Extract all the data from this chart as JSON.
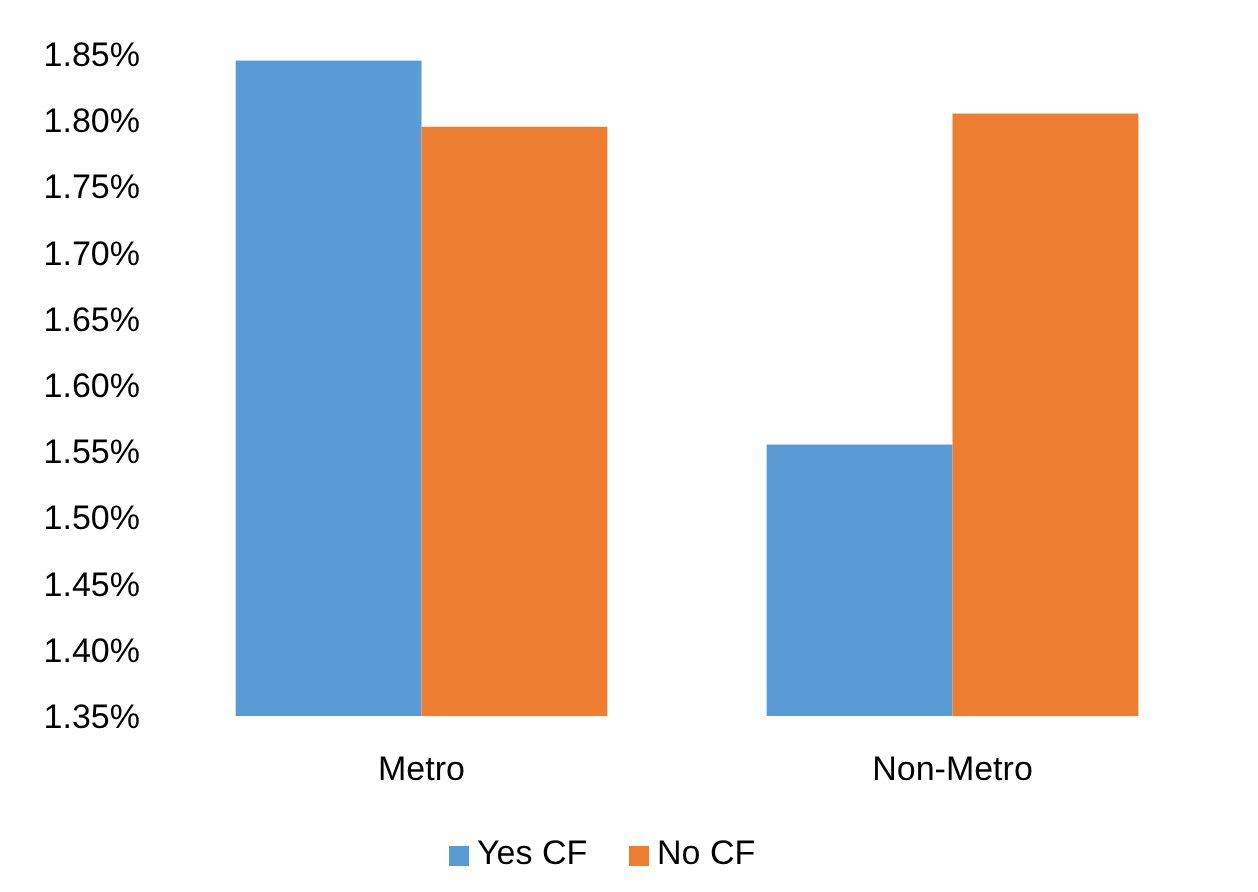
{
  "chart_data": {
    "type": "bar",
    "categories": [
      "Metro",
      "Non-Metro"
    ],
    "series": [
      {
        "name": "Yes CF",
        "color": "#5b9bd5",
        "values": [
          1.845,
          1.555
        ]
      },
      {
        "name": "No CF",
        "color": "#ed7d31",
        "values": [
          1.795,
          1.805
        ]
      }
    ],
    "ylim": [
      1.35,
      1.85
    ],
    "yticks": [
      {
        "value": 1.35,
        "label": "1.35%"
      },
      {
        "value": 1.4,
        "label": "1.40%"
      },
      {
        "value": 1.45,
        "label": "1.45%"
      },
      {
        "value": 1.5,
        "label": "1.50%"
      },
      {
        "value": 1.55,
        "label": "1.55%"
      },
      {
        "value": 1.6,
        "label": "1.60%"
      },
      {
        "value": 1.65,
        "label": "1.65%"
      },
      {
        "value": 1.7,
        "label": "1.70%"
      },
      {
        "value": 1.75,
        "label": "1.75%"
      },
      {
        "value": 1.8,
        "label": "1.80%"
      },
      {
        "value": 1.85,
        "label": "1.85%"
      }
    ],
    "grid": false,
    "legend": "bottom"
  }
}
